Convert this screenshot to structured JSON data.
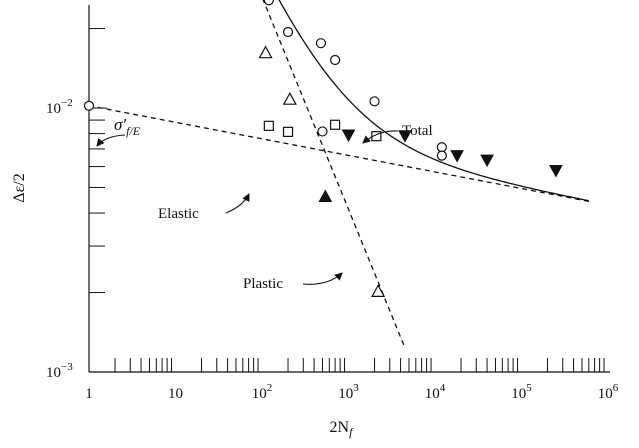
{
  "chart_data": {
    "type": "scatter",
    "xscale": "log",
    "yscale": "log",
    "xlim": [
      1,
      1000000
    ],
    "ylim": [
      0.001,
      0.04
    ],
    "xlabel": "2N_f",
    "ylabel": "Δε/2",
    "x_ticks": [
      {
        "value": 1,
        "base": "1",
        "exp": ""
      },
      {
        "value": 10,
        "base": "10",
        "exp": ""
      },
      {
        "value": 100,
        "base": "10",
        "exp": "2"
      },
      {
        "value": 1000,
        "base": "10",
        "exp": "3"
      },
      {
        "value": 10000,
        "base": "10",
        "exp": "4"
      },
      {
        "value": 100000,
        "base": "10",
        "exp": "5"
      },
      {
        "value": 1000000,
        "base": "10",
        "exp": "6"
      }
    ],
    "y_ticks": [
      {
        "value": 0.001,
        "base": "10",
        "exp": "−3"
      },
      {
        "value": 0.01,
        "base": "10",
        "exp": "−2"
      }
    ],
    "series": [
      {
        "marker": "circle-open",
        "points": [
          [
            120,
            0.0256
          ],
          [
            200,
            0.0194
          ],
          [
            480,
            0.0176
          ],
          [
            700,
            0.0152
          ],
          [
            2000,
            0.0106
          ],
          [
            12000,
            0.0071
          ],
          [
            12000,
            0.0066
          ]
        ]
      },
      {
        "marker": "triangle-open",
        "points": [
          [
            110,
            0.0162
          ],
          [
            210,
            0.0108
          ],
          [
            2200,
            0.00202
          ]
        ]
      },
      {
        "marker": "triangle-filled",
        "points": [
          [
            540,
            0.00462
          ]
        ]
      },
      {
        "marker": "square-open",
        "points": [
          [
            120,
            0.00856
          ],
          [
            200,
            0.00812
          ],
          [
            700,
            0.00864
          ],
          [
            2100,
            0.00782
          ]
        ]
      },
      {
        "marker": "circle-open",
        "points": [
          [
            500,
            0.00815
          ]
        ]
      },
      {
        "marker": "triangle-filled",
        "points": [
          [
            1000,
            0.0079
          ],
          [
            4500,
            0.00785
          ],
          [
            18000,
            0.0066
          ],
          [
            40000,
            0.00635
          ],
          [
            250000,
            0.0058
          ]
        ]
      }
    ],
    "curves": [
      {
        "name": "Total",
        "style": "solid",
        "x_start": 40,
        "x_end": 600000
      },
      {
        "name": "Elastic",
        "style": "dashed",
        "x_start": 1,
        "x_end": 600000
      },
      {
        "name": "Plastic",
        "style": "dashed",
        "x_start": 45,
        "x_end": 4500
      }
    ],
    "annotations": {
      "total": "Total",
      "elastic": "Elastic",
      "plastic": "Plastic",
      "sigma_prime": "σ′",
      "sigma_sub": "f/E"
    }
  }
}
